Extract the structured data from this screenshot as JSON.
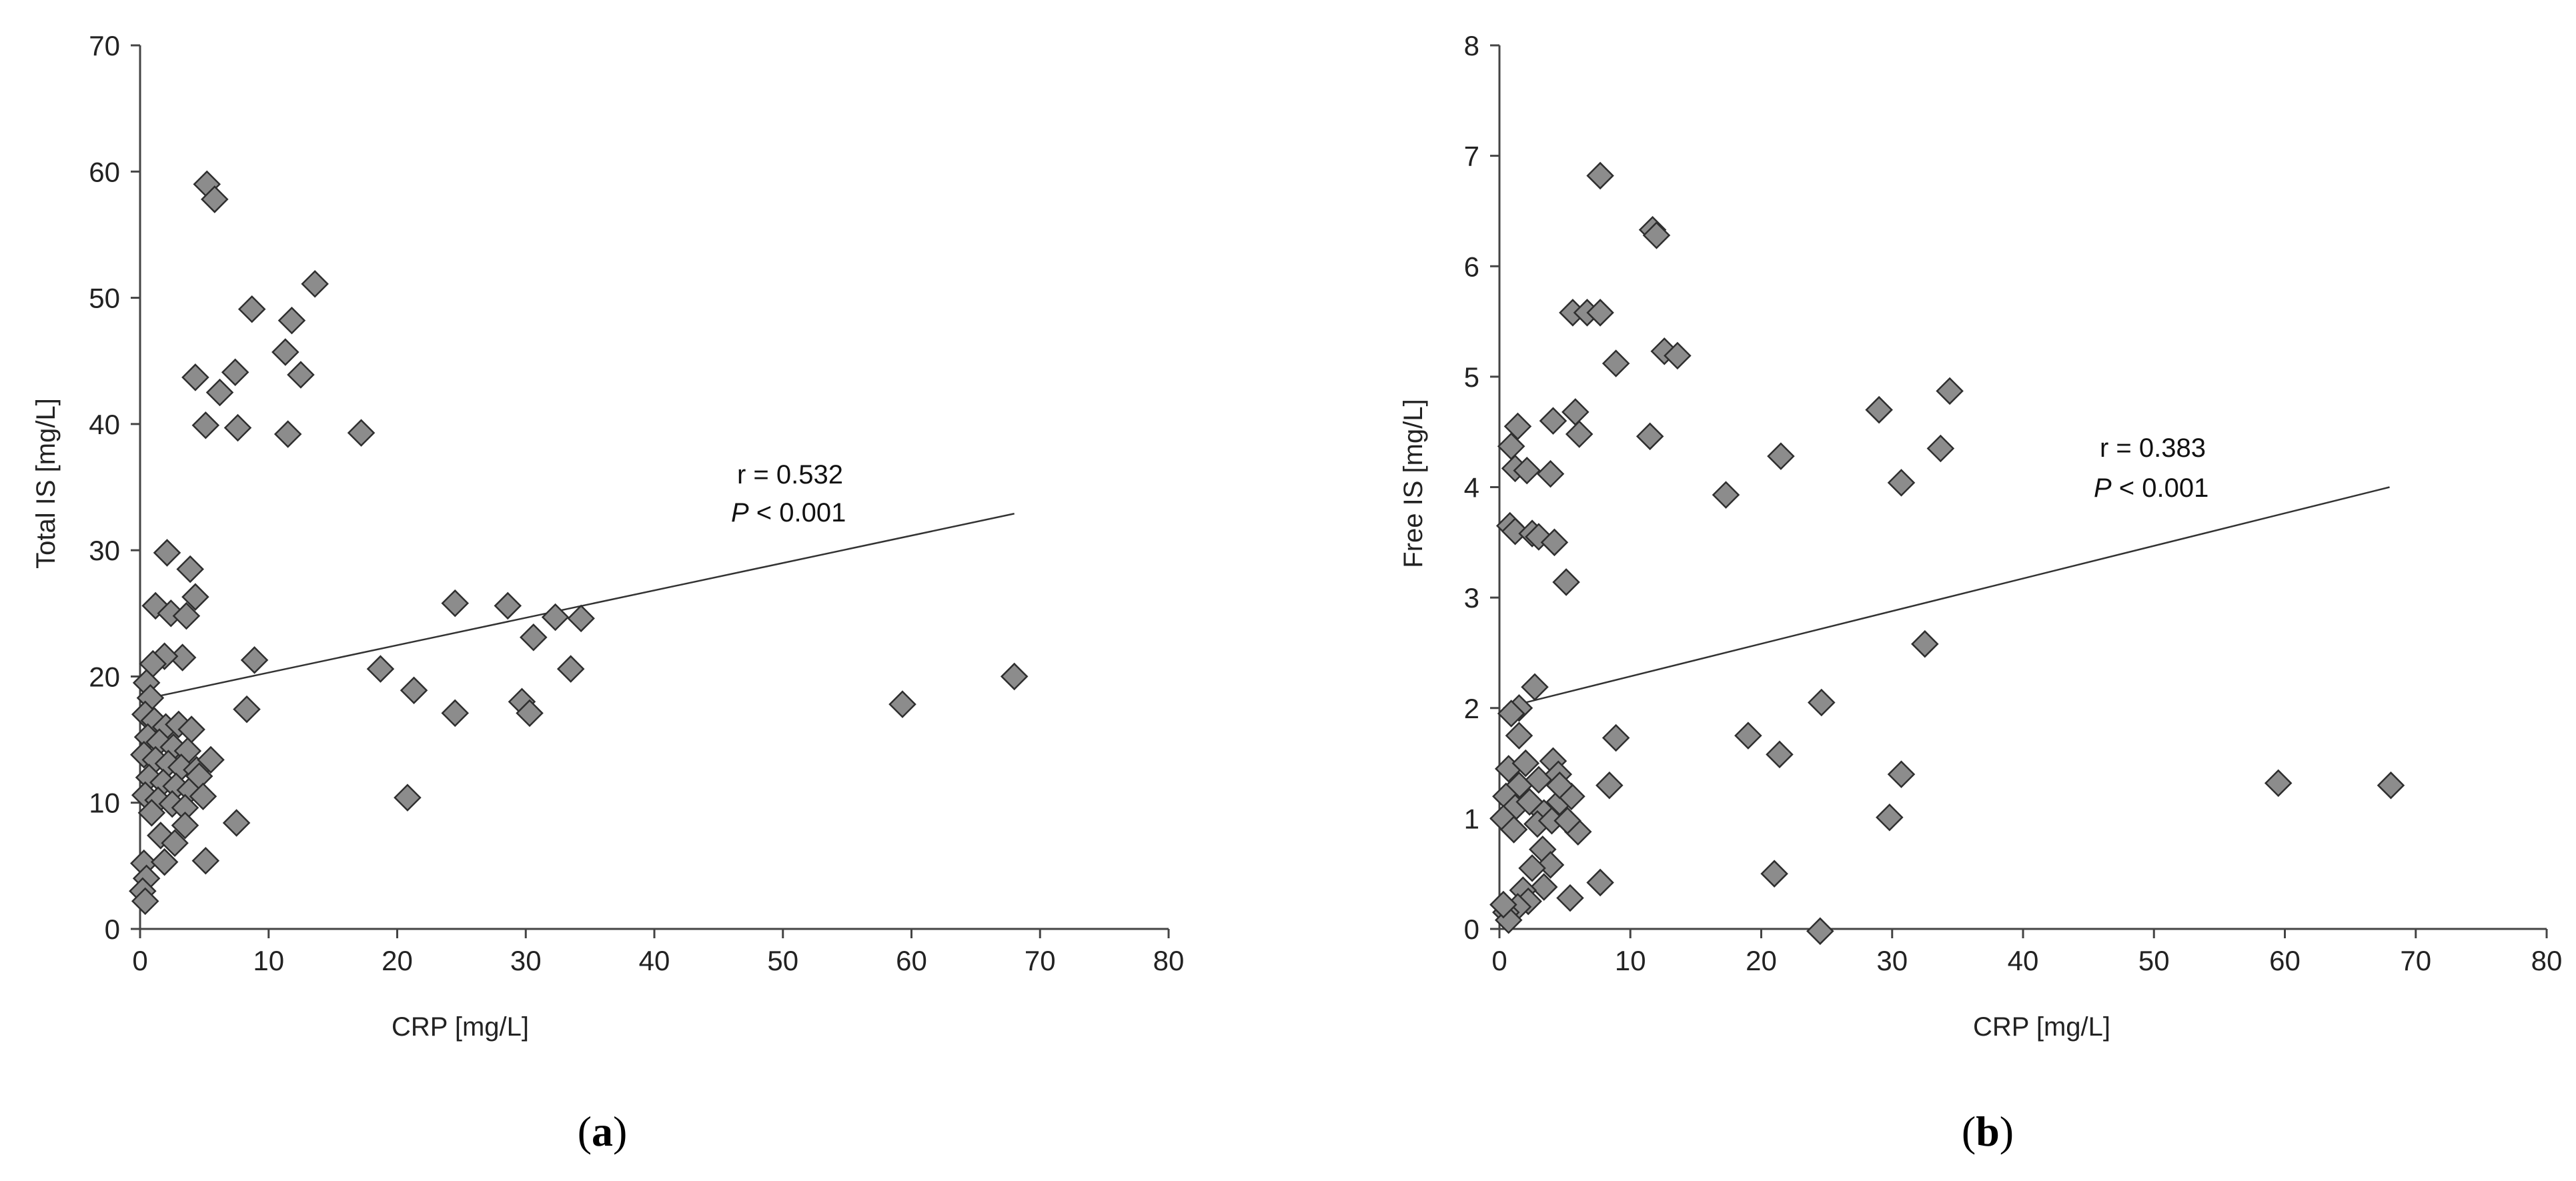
{
  "chart_data": [
    {
      "type": "scatter",
      "panel_label": "a",
      "xlabel": "CRP [mg/L]",
      "ylabel": "Total IS [mg/L]",
      "xlim": [
        0,
        80
      ],
      "ylim": [
        0,
        70
      ],
      "xticks": [
        0,
        10,
        20,
        30,
        40,
        50,
        60,
        70,
        80
      ],
      "yticks": [
        0,
        10,
        20,
        30,
        40,
        50,
        60,
        70
      ],
      "grid": false,
      "annotation": {
        "r_text": "r = 0.532",
        "p_italic": "P",
        "p_rest": " < 0.001"
      },
      "trendline": {
        "x1": 0.3,
        "y1": 18.2,
        "x2": 68,
        "y2": 32.9
      },
      "points": [
        [
          5.2,
          59.0
        ],
        [
          5.8,
          57.8
        ],
        [
          13.6,
          51.1
        ],
        [
          8.7,
          49.1
        ],
        [
          11.8,
          48.2
        ],
        [
          11.3,
          45.7
        ],
        [
          12.5,
          43.9
        ],
        [
          4.3,
          43.7
        ],
        [
          7.4,
          44.1
        ],
        [
          6.2,
          42.5
        ],
        [
          5.1,
          39.9
        ],
        [
          7.6,
          39.7
        ],
        [
          11.5,
          39.2
        ],
        [
          17.2,
          39.3
        ],
        [
          2.1,
          29.8
        ],
        [
          3.9,
          28.5
        ],
        [
          4.3,
          26.3
        ],
        [
          1.2,
          25.6
        ],
        [
          2.4,
          25.0
        ],
        [
          3.6,
          24.8
        ],
        [
          24.5,
          25.8
        ],
        [
          28.6,
          25.6
        ],
        [
          32.3,
          24.7
        ],
        [
          34.3,
          24.6
        ],
        [
          30.6,
          23.1
        ],
        [
          33.5,
          20.6
        ],
        [
          8.9,
          21.3
        ],
        [
          3.3,
          21.5
        ],
        [
          1.9,
          21.6
        ],
        [
          1.0,
          21.0
        ],
        [
          18.7,
          20.6
        ],
        [
          21.3,
          18.9
        ],
        [
          29.7,
          18.0
        ],
        [
          30.3,
          17.1
        ],
        [
          24.5,
          17.1
        ],
        [
          8.3,
          17.4
        ],
        [
          59.3,
          17.8
        ],
        [
          68.0,
          20.0
        ],
        [
          20.8,
          10.4
        ],
        [
          7.5,
          8.4
        ],
        [
          5.1,
          5.4
        ],
        [
          0.5,
          19.5
        ],
        [
          0.8,
          18.3
        ],
        [
          0.4,
          17.0
        ],
        [
          1.1,
          16.5
        ],
        [
          2.0,
          16.0
        ],
        [
          3.0,
          16.2
        ],
        [
          4.0,
          15.8
        ],
        [
          0.6,
          15.2
        ],
        [
          1.5,
          14.8
        ],
        [
          2.6,
          14.4
        ],
        [
          3.7,
          14.1
        ],
        [
          0.3,
          13.8
        ],
        [
          1.2,
          13.4
        ],
        [
          2.2,
          13.1
        ],
        [
          3.2,
          12.8
        ],
        [
          4.4,
          12.6
        ],
        [
          5.5,
          13.4
        ],
        [
          0.7,
          12.0
        ],
        [
          1.8,
          11.6
        ],
        [
          2.8,
          11.3
        ],
        [
          3.9,
          11.0
        ],
        [
          0.4,
          10.6
        ],
        [
          1.4,
          10.2
        ],
        [
          2.5,
          9.9
        ],
        [
          3.5,
          9.6
        ],
        [
          4.6,
          12.1
        ],
        [
          0.9,
          9.2
        ],
        [
          0.3,
          5.2
        ],
        [
          0.5,
          4.0
        ],
        [
          0.2,
          3.0
        ],
        [
          0.4,
          2.2
        ],
        [
          1.6,
          7.4
        ],
        [
          2.7,
          6.8
        ],
        [
          3.5,
          8.2
        ],
        [
          1.9,
          5.3
        ],
        [
          4.9,
          10.5
        ]
      ]
    },
    {
      "type": "scatter",
      "panel_label": "b",
      "xlabel": "CRP [mg/L]",
      "ylabel": "Free IS [mg/L]",
      "xlim": [
        0,
        80
      ],
      "ylim": [
        0,
        8
      ],
      "xticks": [
        0,
        10,
        20,
        30,
        40,
        50,
        60,
        70,
        80
      ],
      "yticks": [
        0,
        1,
        2,
        3,
        4,
        5,
        6,
        7,
        8
      ],
      "grid": false,
      "annotation": {
        "r_text": "r = 0.383",
        "p_italic": "P",
        "p_rest": " < 0.001"
      },
      "trendline": {
        "x1": 0.3,
        "y1": 2.0,
        "x2": 68,
        "y2": 4.0
      },
      "points": [
        [
          7.7,
          6.82
        ],
        [
          11.7,
          6.33
        ],
        [
          12.0,
          6.28
        ],
        [
          5.6,
          5.58
        ],
        [
          6.7,
          5.58
        ],
        [
          7.7,
          5.58
        ],
        [
          8.9,
          5.12
        ],
        [
          12.6,
          5.23
        ],
        [
          13.6,
          5.19
        ],
        [
          5.8,
          4.68
        ],
        [
          6.1,
          4.48
        ],
        [
          11.5,
          4.46
        ],
        [
          1.4,
          4.55
        ],
        [
          0.9,
          4.37
        ],
        [
          4.1,
          4.6
        ],
        [
          1.2,
          4.17
        ],
        [
          2.1,
          4.15
        ],
        [
          3.9,
          4.12
        ],
        [
          17.3,
          3.93
        ],
        [
          21.5,
          4.28
        ],
        [
          29.0,
          4.7
        ],
        [
          34.4,
          4.87
        ],
        [
          33.7,
          4.35
        ],
        [
          30.7,
          4.04
        ],
        [
          0.8,
          3.65
        ],
        [
          1.2,
          3.6
        ],
        [
          2.5,
          3.58
        ],
        [
          3.0,
          3.55
        ],
        [
          4.2,
          3.5
        ],
        [
          5.1,
          3.14
        ],
        [
          2.7,
          2.19
        ],
        [
          1.5,
          2.0
        ],
        [
          0.9,
          1.95
        ],
        [
          1.5,
          1.75
        ],
        [
          8.9,
          1.73
        ],
        [
          19.0,
          1.75
        ],
        [
          21.4,
          1.58
        ],
        [
          24.6,
          2.05
        ],
        [
          32.5,
          2.58
        ],
        [
          30.7,
          1.4
        ],
        [
          29.8,
          1.01
        ],
        [
          59.5,
          1.32
        ],
        [
          68.1,
          1.3
        ],
        [
          21.0,
          0.5
        ],
        [
          24.5,
          -0.02
        ],
        [
          8.4,
          1.3
        ],
        [
          6.0,
          0.88
        ],
        [
          7.7,
          0.42
        ],
        [
          0.7,
          1.45
        ],
        [
          1.5,
          1.3
        ],
        [
          2.0,
          1.5
        ],
        [
          3.0,
          1.35
        ],
        [
          4.1,
          1.52
        ],
        [
          4.5,
          1.4
        ],
        [
          0.5,
          1.2
        ],
        [
          1.2,
          1.1
        ],
        [
          2.3,
          1.15
        ],
        [
          3.4,
          1.05
        ],
        [
          4.6,
          1.15
        ],
        [
          5.5,
          1.2
        ],
        [
          0.3,
          1.0
        ],
        [
          1.1,
          0.9
        ],
        [
          2.9,
          0.95
        ],
        [
          4.0,
          0.98
        ],
        [
          5.2,
          0.98
        ],
        [
          3.3,
          0.72
        ],
        [
          3.9,
          0.58
        ],
        [
          2.5,
          0.55
        ],
        [
          3.4,
          0.38
        ],
        [
          1.8,
          0.35
        ],
        [
          2.2,
          0.25
        ],
        [
          1.4,
          0.2
        ],
        [
          0.5,
          0.15
        ],
        [
          0.7,
          0.08
        ],
        [
          0.3,
          0.22
        ],
        [
          5.4,
          0.28
        ],
        [
          4.6,
          1.3
        ]
      ]
    }
  ]
}
